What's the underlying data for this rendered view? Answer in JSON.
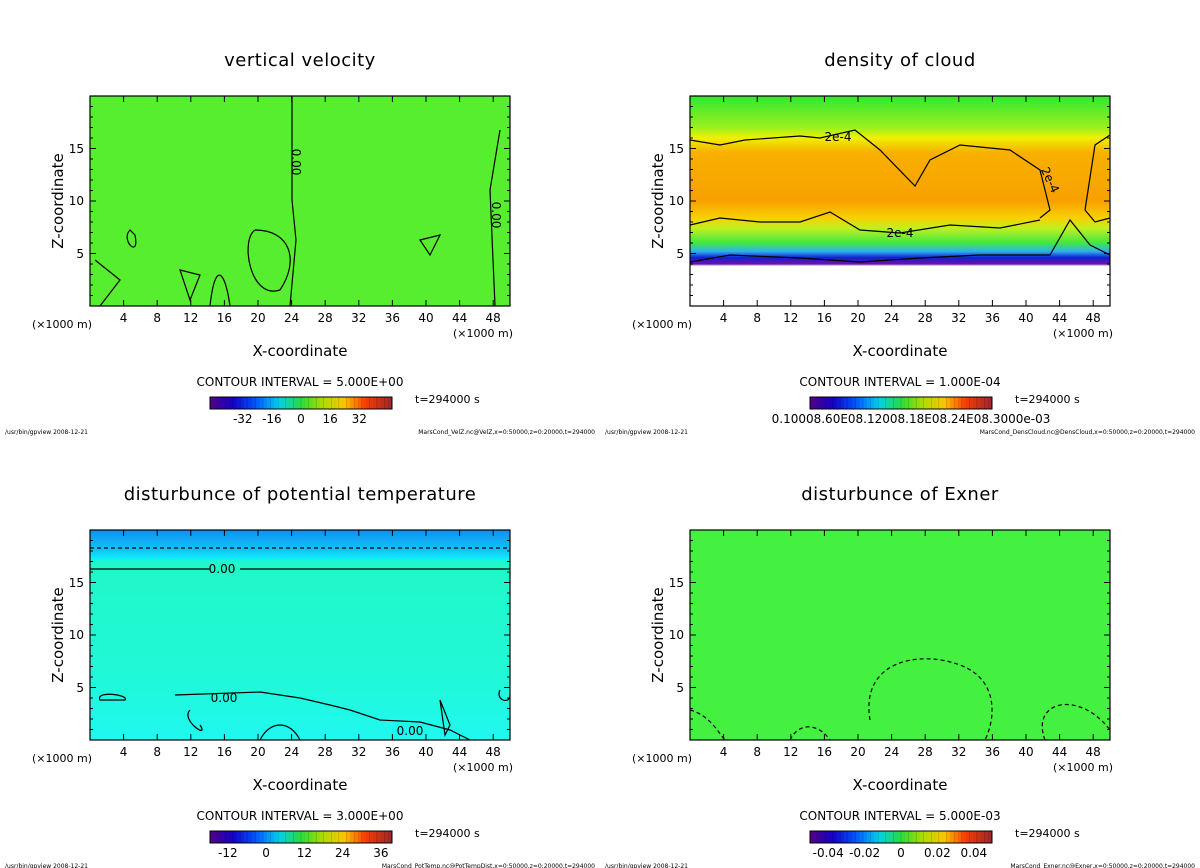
{
  "panels": [
    {
      "title": "vertical velocity",
      "xlabel": "X-coordinate",
      "ylabel": "Z-coordinate",
      "x_unit_left": "(×1000 m)",
      "x_unit_right": "(×1000 m)",
      "contour_interval": "CONTOUR INTERVAL = 5.000E+00",
      "time": "t=294000 s",
      "footer_left": "/usr/bin/gpview  2008-12-21",
      "footer_right": "MarsCond_VelZ.nc@VelZ,x=0:50000,z=0:20000,t=294000",
      "contour_labels": [
        "0.00",
        "0.00"
      ],
      "colorbar": {
        "range": [
          -50,
          50
        ],
        "ticks": [
          -32,
          -16,
          0,
          16,
          32
        ]
      }
    },
    {
      "title": "density of cloud",
      "xlabel": "X-coordinate",
      "ylabel": "Z-coordinate",
      "x_unit_left": "(×1000 m)",
      "x_unit_right": "(×1000 m)",
      "contour_interval": "CONTOUR INTERVAL = 1.000E-04",
      "time": "t=294000 s",
      "footer_left": "/usr/bin/gpview  2008-12-21",
      "footer_right": "MarsCond_DensCloud.nc@DensCloud,x=0:50000,z=0:20000,t=294000",
      "contour_labels": [
        "2e-4",
        "2e-4",
        "2e-4"
      ],
      "colorbar": {
        "label_text": "0.10008.60E08.12008.18E08.24E08.3000e-03"
      }
    },
    {
      "title": "disturbunce of potential temperature",
      "xlabel": "X-coordinate",
      "ylabel": "Z-coordinate",
      "x_unit_left": "(×1000 m)",
      "x_unit_right": "(×1000 m)",
      "contour_interval": "CONTOUR INTERVAL = 3.000E+00",
      "time": "t=294000 s",
      "footer_left": "/usr/bin/gpview  2008-12-21",
      "footer_right": "MarsCond_PotTemp.nc@PotTempDist,x=0:50000,z=0:20000,t=294000",
      "contour_labels": [
        "0.00",
        "0.00",
        "0.00"
      ],
      "colorbar": {
        "range": [
          -17.6,
          39.5
        ],
        "ticks": [
          -12,
          0,
          12,
          24,
          36
        ]
      }
    },
    {
      "title": "disturbunce of Exner",
      "xlabel": "X-coordinate",
      "ylabel": "Z-coordinate",
      "x_unit_left": "(×1000 m)",
      "x_unit_right": "(×1000 m)",
      "contour_interval": "CONTOUR INTERVAL = 5.000E-03",
      "time": "t=294000 s",
      "footer_left": "/usr/bin/gpview  2008-12-21",
      "footer_right": "MarsCond_Exner.nc@Exner,x=0:50000,z=0:20000,t=294000",
      "contour_labels": [],
      "colorbar": {
        "range": [
          -0.05,
          0.05
        ],
        "ticks": [
          "-0.04",
          "-0.02",
          "0",
          "0.02",
          "0.04"
        ]
      }
    }
  ],
  "chart_data": [
    {
      "type": "heatmap",
      "title": "vertical velocity",
      "xlabel": "X-coordinate (×1000 m)",
      "ylabel": "Z-coordinate",
      "xlim": [
        0,
        50
      ],
      "ylim": [
        0,
        20
      ],
      "xticks": [
        4,
        8,
        12,
        16,
        20,
        24,
        28,
        32,
        36,
        40,
        44,
        48
      ],
      "yticks": [
        5,
        10,
        15
      ],
      "contour_interval": 5.0,
      "colorbar_ticks": [
        -32,
        -16,
        0,
        16,
        32
      ]
    },
    {
      "type": "heatmap",
      "title": "density of cloud",
      "xlabel": "X-coordinate (×1000 m)",
      "ylabel": "Z-coordinate",
      "xlim": [
        0,
        50
      ],
      "ylim": [
        0,
        20
      ],
      "xticks": [
        4,
        8,
        12,
        16,
        20,
        24,
        28,
        32,
        36,
        40,
        44,
        48
      ],
      "yticks": [
        5,
        10,
        15
      ],
      "contour_interval": 0.0001
    },
    {
      "type": "heatmap",
      "title": "disturbunce of potential temperature",
      "xlabel": "X-coordinate (×1000 m)",
      "ylabel": "Z-coordinate",
      "xlim": [
        0,
        50
      ],
      "ylim": [
        0,
        20
      ],
      "xticks": [
        4,
        8,
        12,
        16,
        20,
        24,
        28,
        32,
        36,
        40,
        44,
        48
      ],
      "yticks": [
        5,
        10,
        15
      ],
      "contour_interval": 3.0,
      "colorbar_ticks": [
        -12,
        0,
        12,
        24,
        36
      ]
    },
    {
      "type": "heatmap",
      "title": "disturbunce of Exner",
      "xlabel": "X-coordinate (×1000 m)",
      "ylabel": "Z-coordinate",
      "xlim": [
        0,
        50
      ],
      "ylim": [
        0,
        20
      ],
      "xticks": [
        4,
        8,
        12,
        16,
        20,
        24,
        28,
        32,
        36,
        40,
        44,
        48
      ],
      "yticks": [
        5,
        10,
        15
      ],
      "contour_interval": 0.005,
      "colorbar_ticks": [
        -0.04,
        -0.02,
        0,
        0.02,
        0.04
      ]
    }
  ]
}
